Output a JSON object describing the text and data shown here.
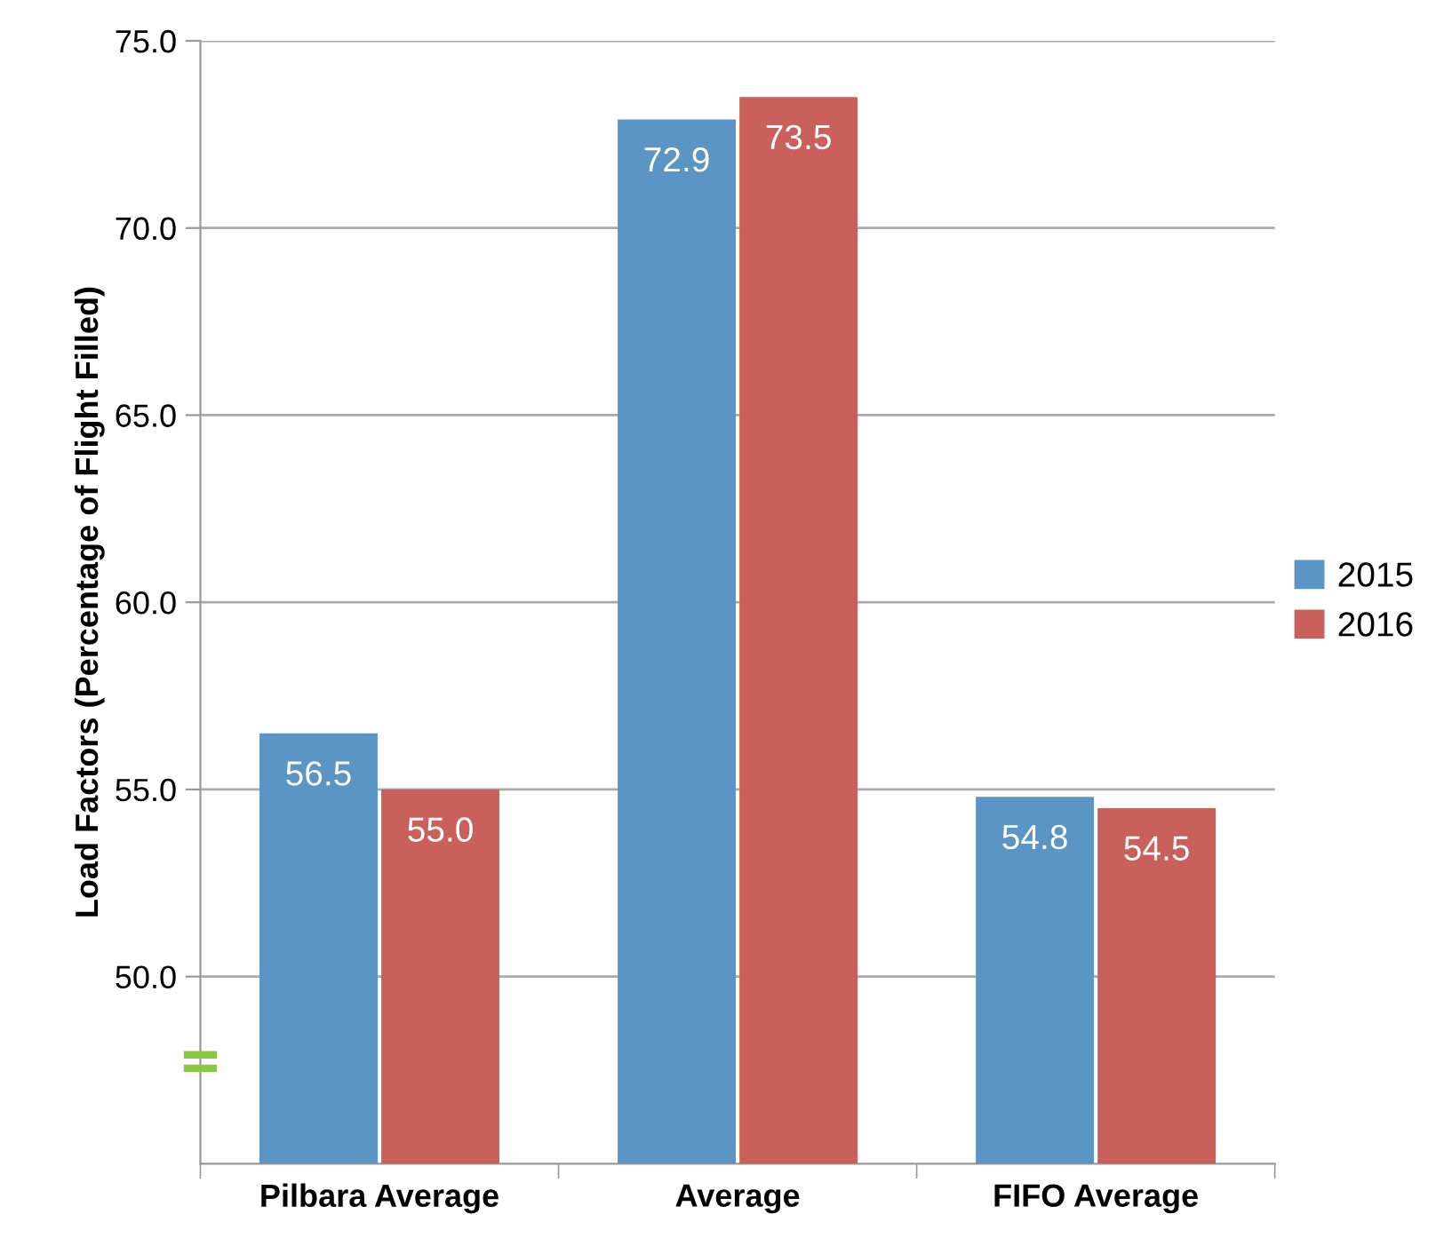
{
  "chart_data": {
    "type": "bar",
    "ylabel": "Load Factors (Percentage of Flight Filled)",
    "categories": [
      "Pilbara Average",
      "Average",
      "FIFO Average"
    ],
    "series": [
      {
        "name": "2015",
        "color": "#5b95c6",
        "values": [
          56.5,
          72.9,
          54.8
        ],
        "value_labels": [
          "56.5",
          "72.9",
          "54.8"
        ]
      },
      {
        "name": "2016",
        "color": "#c9605b",
        "values": [
          55.0,
          73.5,
          54.5
        ],
        "value_labels": [
          "55.0",
          "73.5",
          "54.5"
        ]
      }
    ],
    "ylim": [
      45,
      75
    ],
    "yticks": [
      {
        "value": 50,
        "label": "50.0"
      },
      {
        "value": 55,
        "label": "55.0"
      },
      {
        "value": 60,
        "label": "60.0"
      },
      {
        "value": 65,
        "label": "65.0"
      },
      {
        "value": 70,
        "label": "70.0"
      },
      {
        "value": 75,
        "label": "75.0"
      }
    ],
    "grid": "y",
    "legend": "right"
  }
}
